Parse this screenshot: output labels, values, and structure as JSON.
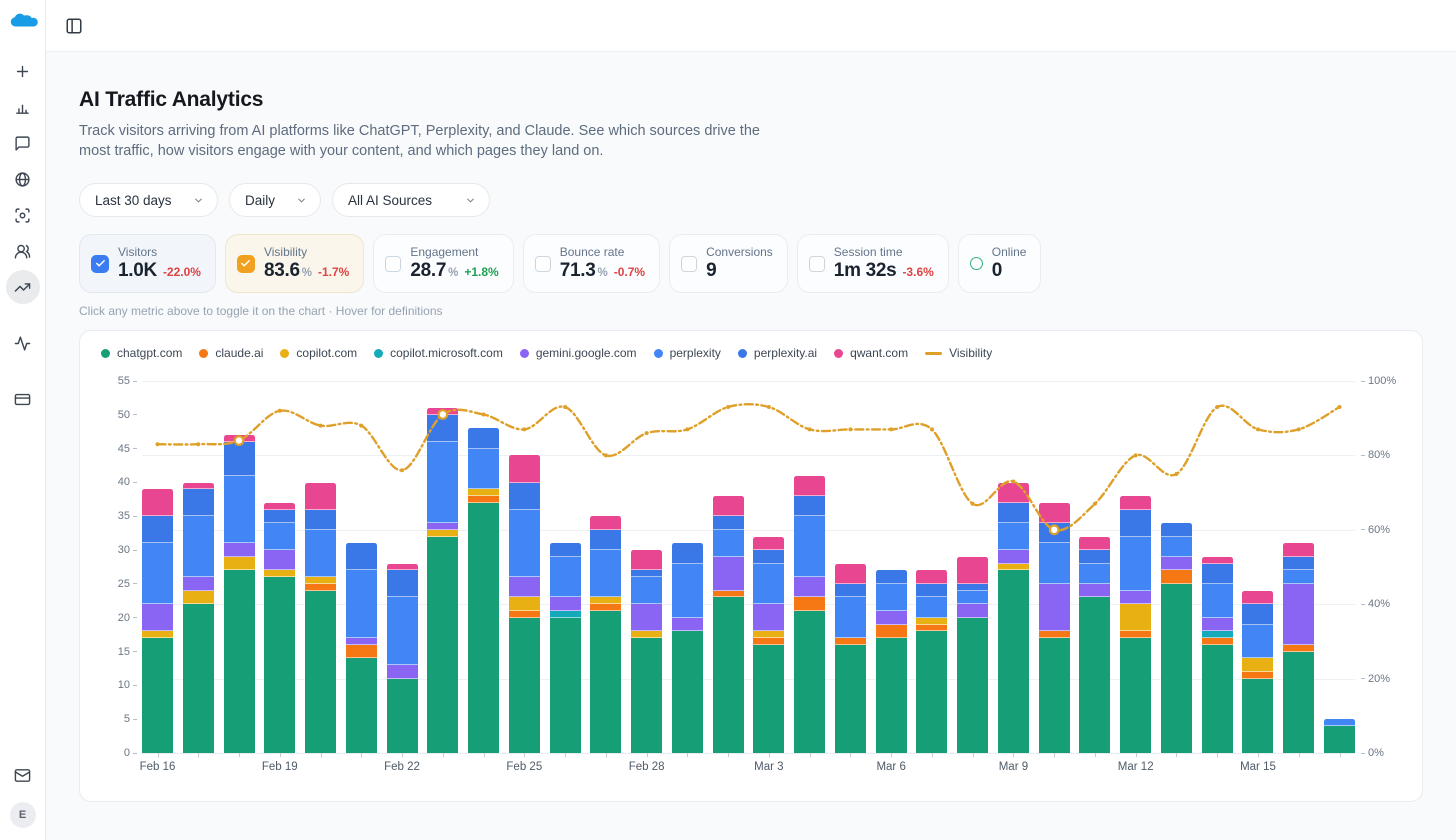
{
  "sidebar": {
    "icons": [
      {
        "name": "plus"
      },
      {
        "name": "bar-chart"
      },
      {
        "name": "chat"
      },
      {
        "name": "globe"
      },
      {
        "name": "scan-face"
      },
      {
        "name": "users"
      },
      {
        "name": "trending-up",
        "active": true
      },
      {
        "name": "activity"
      },
      {
        "name": "credit-card"
      }
    ],
    "bottom_icons": [
      {
        "name": "mail"
      }
    ],
    "avatar": "E"
  },
  "header": {
    "title": "AI Traffic Analytics",
    "description_line1": "Track visitors arriving from AI platforms like ChatGPT, Perplexity, and Claude. See which sources drive the",
    "description_line2": "most traffic, how visitors engage with your content, and which pages they land on."
  },
  "filters": [
    {
      "id": "date-range",
      "label": "Last 30 days"
    },
    {
      "id": "granularity",
      "label": "Daily"
    },
    {
      "id": "source",
      "label": "All AI Sources"
    }
  ],
  "metrics": [
    {
      "id": "visitors",
      "label": "Visitors",
      "value": "1.0K",
      "suffix": "",
      "delta": "-22.0%",
      "delta_color": "#DE4242",
      "check": "checked",
      "accent": "#3B7DF0",
      "bg": "#F2F6FA",
      "border": "#E1E8F0"
    },
    {
      "id": "visibility",
      "label": "Visibility",
      "value": "83.6",
      "suffix": "%",
      "delta": "-1.7%",
      "delta_color": "#DE4242",
      "check": "checked",
      "accent": "#EFA11F",
      "bg": "#FAF6EC",
      "border": "#EFE6CF"
    },
    {
      "id": "engagement",
      "label": "Engagement",
      "value": "28.7",
      "suffix": "%",
      "delta": "+1.8%",
      "delta_color": "#1CA152",
      "check": "unchecked",
      "accent": "",
      "bg": "#FCFDFE",
      "border": "#E9EDF2"
    },
    {
      "id": "bounce-rate",
      "label": "Bounce rate",
      "value": "71.3",
      "suffix": "%",
      "delta": "-0.7%",
      "delta_color": "#DE4242",
      "check": "unchecked",
      "accent": "",
      "bg": "#FCFDFE",
      "border": "#E9EDF2"
    },
    {
      "id": "conversions",
      "label": "Conversions",
      "value": "9",
      "suffix": "",
      "delta": "",
      "delta_color": "",
      "check": "unchecked",
      "accent": "",
      "bg": "#FCFDFE",
      "border": "#E9EDF2"
    },
    {
      "id": "session-time",
      "label": "Session time",
      "value": "1m 32s",
      "suffix": "",
      "delta": "-3.6%",
      "delta_color": "#DE4242",
      "check": "unchecked",
      "accent": "",
      "bg": "#FCFDFE",
      "border": "#E9EDF2"
    },
    {
      "id": "online",
      "label": "Online",
      "value": "0",
      "suffix": "",
      "delta": "",
      "delta_color": "",
      "check": "ring",
      "accent": "#35B07C",
      "bg": "#FCFDFE",
      "border": "#E9EDF2"
    }
  ],
  "hint": "Click any metric above to toggle it on the chart · Hover for definitions",
  "chart_data": {
    "type": "bar-line-combo",
    "x": [
      "Feb 16",
      "Feb 17",
      "Feb 18",
      "Feb 19",
      "Feb 20",
      "Feb 21",
      "Feb 22",
      "Feb 23",
      "Feb 24",
      "Feb 25",
      "Feb 26",
      "Feb 27",
      "Feb 28",
      "Mar 1",
      "Mar 2",
      "Mar 3",
      "Mar 4",
      "Mar 5",
      "Mar 6",
      "Mar 7",
      "Mar 8",
      "Mar 9",
      "Mar 10",
      "Mar 11",
      "Mar 12",
      "Mar 13",
      "Mar 14",
      "Mar 15",
      "Mar 16",
      "Mar 17"
    ],
    "x_tick_indices": [
      0,
      3,
      6,
      9,
      12,
      15,
      18,
      21,
      24,
      27
    ],
    "x_tick_labels": [
      "Feb 16",
      "Feb 19",
      "Feb 22",
      "Feb 25",
      "Feb 28",
      "Mar 3",
      "Mar 6",
      "Mar 9",
      "Mar 12",
      "Mar 15"
    ],
    "series": [
      {
        "name": "chatgpt.com",
        "color": "#169E76",
        "values": [
          17,
          22,
          27,
          26,
          24,
          14,
          11,
          32,
          37,
          20,
          20,
          21,
          17,
          18,
          23,
          16,
          21,
          16,
          17,
          18,
          20,
          27,
          17,
          23,
          17,
          25,
          16,
          11,
          15,
          4
        ]
      },
      {
        "name": "claude.ai",
        "color": "#F57814",
        "values": [
          0,
          0,
          0,
          0,
          1,
          2,
          0,
          0,
          1,
          1,
          0,
          1,
          0,
          0,
          1,
          1,
          2,
          1,
          2,
          1,
          0,
          0,
          1,
          0,
          1,
          2,
          1,
          1,
          1,
          0
        ]
      },
      {
        "name": "copilot.com",
        "color": "#E9B014",
        "values": [
          1,
          2,
          2,
          1,
          1,
          0,
          0,
          1,
          1,
          2,
          0,
          1,
          1,
          0,
          0,
          1,
          0,
          0,
          0,
          1,
          0,
          1,
          0,
          0,
          4,
          0,
          0,
          2,
          0,
          0
        ]
      },
      {
        "name": "copilot.microsoft.com",
        "color": "#14AAB9",
        "values": [
          0,
          0,
          0,
          0,
          0,
          0,
          0,
          0,
          0,
          0,
          1,
          0,
          0,
          0,
          0,
          0,
          0,
          0,
          0,
          0,
          0,
          0,
          0,
          0,
          0,
          0,
          1,
          0,
          0,
          0
        ]
      },
      {
        "name": "gemini.google.com",
        "color": "#8A64F2",
        "values": [
          4,
          2,
          2,
          3,
          0,
          1,
          2,
          1,
          0,
          3,
          2,
          0,
          4,
          2,
          5,
          4,
          3,
          0,
          2,
          0,
          2,
          2,
          7,
          2,
          2,
          2,
          2,
          0,
          9,
          0
        ]
      },
      {
        "name": "perplexity",
        "color": "#4285F4",
        "values": [
          9,
          9,
          10,
          4,
          7,
          10,
          10,
          12,
          6,
          10,
          6,
          7,
          4,
          8,
          4,
          6,
          9,
          6,
          4,
          3,
          2,
          4,
          6,
          3,
          8,
          3,
          5,
          5,
          2,
          1
        ]
      },
      {
        "name": "perplexity.ai",
        "color": "#3B78E7",
        "values": [
          4,
          4,
          5,
          2,
          3,
          4,
          4,
          4,
          3,
          4,
          2,
          3,
          1,
          3,
          2,
          2,
          3,
          2,
          2,
          2,
          1,
          3,
          3,
          2,
          4,
          2,
          3,
          3,
          2,
          0
        ]
      },
      {
        "name": "qwant.com",
        "color": "#E84691",
        "values": [
          4,
          1,
          1,
          1,
          4,
          0,
          1,
          1,
          0,
          4,
          0,
          2,
          3,
          0,
          3,
          2,
          3,
          3,
          0,
          2,
          4,
          3,
          3,
          2,
          2,
          0,
          1,
          2,
          2,
          0
        ]
      }
    ],
    "line": {
      "name": "Visibility",
      "color": "#DEA028",
      "unit": "%",
      "values": [
        83,
        83,
        84,
        92,
        88,
        88,
        76,
        91,
        91,
        87,
        93,
        80,
        86,
        87,
        93,
        93,
        87,
        87,
        87,
        87,
        67,
        73,
        60,
        67,
        80,
        75,
        93,
        87,
        87,
        93
      ],
      "highlight_indices": [
        2,
        7,
        22
      ]
    },
    "y_left": {
      "max": 55,
      "labels": [
        "0",
        "5",
        "10",
        "15",
        "20",
        "25",
        "30",
        "35",
        "40",
        "45",
        "50",
        "55"
      ]
    },
    "y_right": {
      "labels": [
        {
          "text": "0%",
          "pct": 0
        },
        {
          "text": "20%",
          "pct": 20
        },
        {
          "text": "40%",
          "pct": 40
        },
        {
          "text": "60%",
          "pct": 60
        },
        {
          "text": "80%",
          "pct": 80
        },
        {
          "text": "100%",
          "pct": 100
        }
      ]
    },
    "grid_pcts": [
      20,
      40,
      60,
      80,
      100
    ]
  }
}
